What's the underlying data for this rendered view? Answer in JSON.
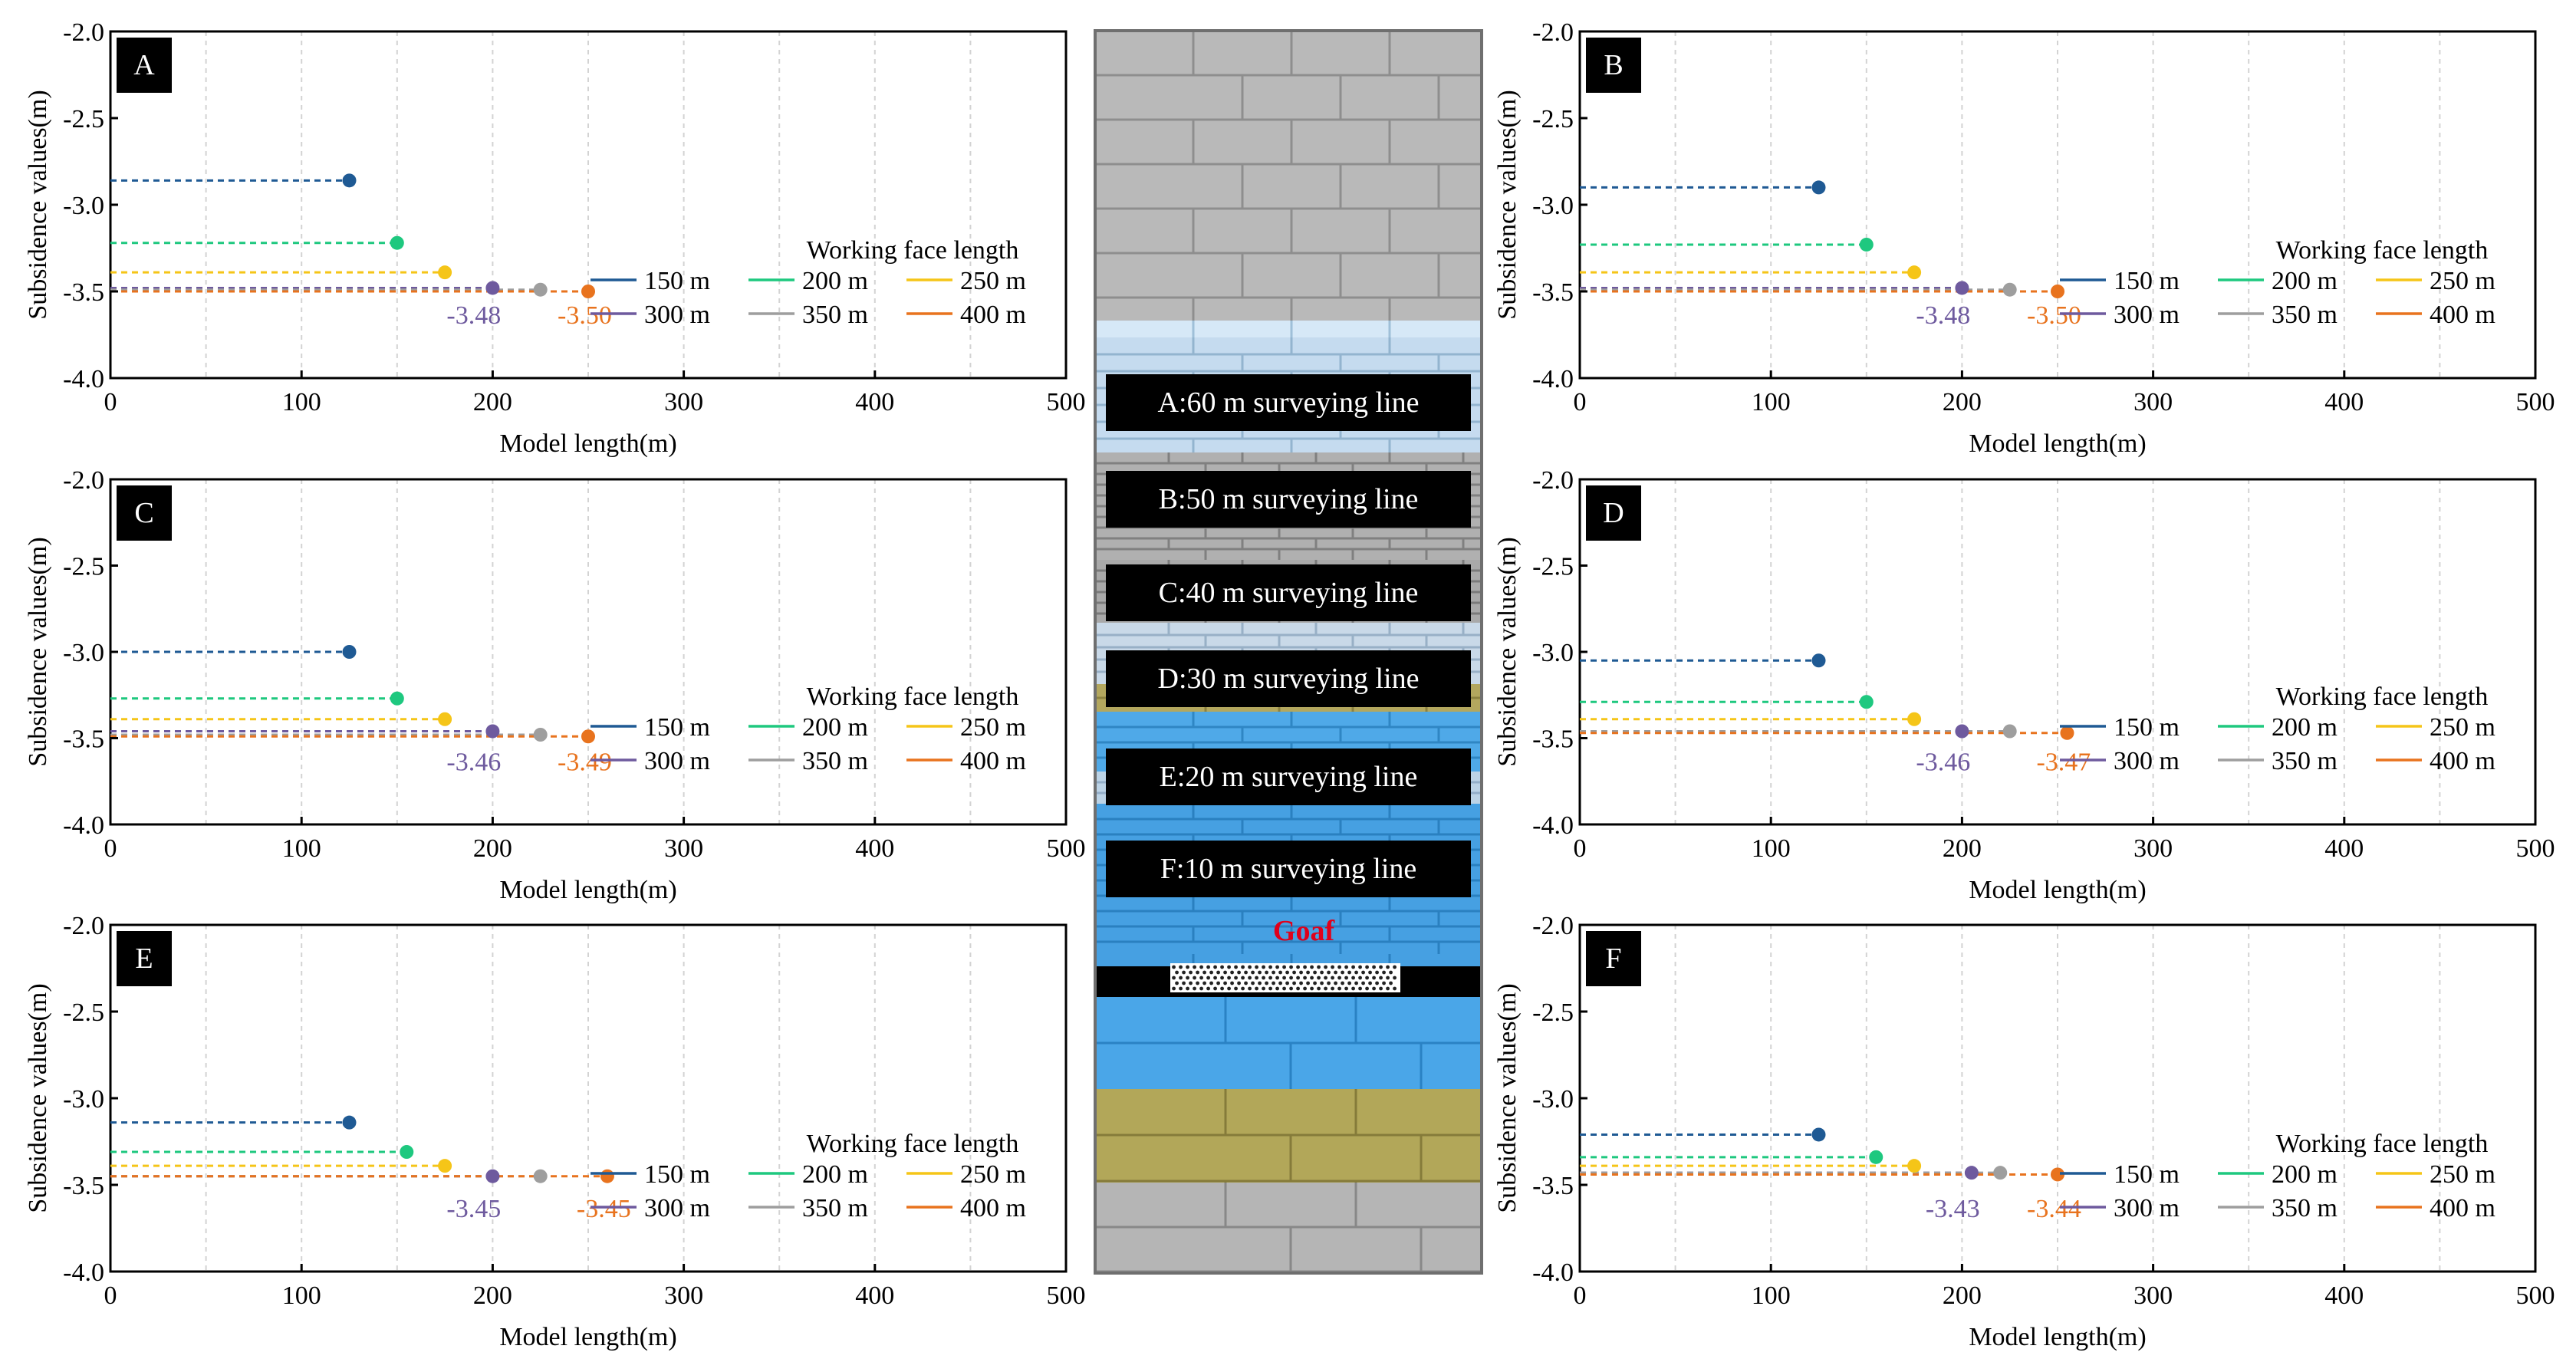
{
  "figure": {
    "goaf_label": "Goaf",
    "surveying_lines": [
      "A:60 m surveying line",
      "B:50 m surveying line",
      "C:40 m surveying line",
      "D:30 m surveying line",
      "E:20 m surveying line",
      "F:10 m surveying line"
    ]
  },
  "chart_data": [
    {
      "type": "line",
      "panel_label": "A",
      "xlabel": "Model length(m)",
      "ylabel": "Subsidence values(m)",
      "xlim": [
        0,
        500
      ],
      "ylim": [
        -4.0,
        -2.0
      ],
      "x_ticks": [
        "0",
        "100",
        "200",
        "300",
        "400",
        "500"
      ],
      "y_ticks": [
        "-2.0",
        "-2.5",
        "-3.0",
        "-3.5",
        "-4.0"
      ],
      "legend_title": "Working face length",
      "series": [
        {
          "name": "150 m",
          "color": "#1f5a94",
          "min_x": 125,
          "min_y": -2.86
        },
        {
          "name": "200 m",
          "color": "#1ec87f",
          "min_x": 150,
          "min_y": -3.22
        },
        {
          "name": "250 m",
          "color": "#f5c518",
          "min_x": 175,
          "min_y": -3.39
        },
        {
          "name": "300 m",
          "color": "#6e5a9e",
          "min_x": 200,
          "min_y": -3.48
        },
        {
          "name": "350 m",
          "color": "#9e9e9e",
          "min_x": 225,
          "min_y": -3.49
        },
        {
          "name": "400 m",
          "color": "#e8731e",
          "min_x": 250,
          "min_y": -3.5
        }
      ],
      "annotations": [
        {
          "text": "-3.48",
          "color": "#6e5a9e"
        },
        {
          "text": "-3.50",
          "color": "#e8731e"
        }
      ]
    },
    {
      "type": "line",
      "panel_label": "B",
      "xlabel": "Model length(m)",
      "ylabel": "Subsidence values(m)",
      "xlim": [
        0,
        500
      ],
      "ylim": [
        -4.0,
        -2.0
      ],
      "x_ticks": [
        "0",
        "100",
        "200",
        "300",
        "400",
        "500"
      ],
      "y_ticks": [
        "-2.0",
        "-2.5",
        "-3.0",
        "-3.5",
        "-4.0"
      ],
      "legend_title": "Working face length",
      "series": [
        {
          "name": "150 m",
          "color": "#1f5a94",
          "min_x": 125,
          "min_y": -2.9
        },
        {
          "name": "200 m",
          "color": "#1ec87f",
          "min_x": 150,
          "min_y": -3.23
        },
        {
          "name": "250 m",
          "color": "#f5c518",
          "min_x": 175,
          "min_y": -3.39
        },
        {
          "name": "300 m",
          "color": "#6e5a9e",
          "min_x": 200,
          "min_y": -3.48
        },
        {
          "name": "350 m",
          "color": "#9e9e9e",
          "min_x": 225,
          "min_y": -3.49
        },
        {
          "name": "400 m",
          "color": "#e8731e",
          "min_x": 250,
          "min_y": -3.5
        }
      ],
      "annotations": [
        {
          "text": "-3.48",
          "color": "#6e5a9e"
        },
        {
          "text": "-3.50",
          "color": "#e8731e"
        }
      ]
    },
    {
      "type": "line",
      "panel_label": "C",
      "xlabel": "Model length(m)",
      "ylabel": "Subsidence values(m)",
      "xlim": [
        0,
        500
      ],
      "ylim": [
        -4.0,
        -2.0
      ],
      "x_ticks": [
        "0",
        "100",
        "200",
        "300",
        "400",
        "500"
      ],
      "y_ticks": [
        "-2.0",
        "-2.5",
        "-3.0",
        "-3.5",
        "-4.0"
      ],
      "legend_title": "Working face length",
      "series": [
        {
          "name": "150 m",
          "color": "#1f5a94",
          "min_x": 125,
          "min_y": -3.0
        },
        {
          "name": "200 m",
          "color": "#1ec87f",
          "min_x": 150,
          "min_y": -3.27
        },
        {
          "name": "250 m",
          "color": "#f5c518",
          "min_x": 175,
          "min_y": -3.39
        },
        {
          "name": "300 m",
          "color": "#6e5a9e",
          "min_x": 200,
          "min_y": -3.46
        },
        {
          "name": "350 m",
          "color": "#9e9e9e",
          "min_x": 225,
          "min_y": -3.48
        },
        {
          "name": "400 m",
          "color": "#e8731e",
          "min_x": 250,
          "min_y": -3.49
        }
      ],
      "annotations": [
        {
          "text": "-3.46",
          "color": "#6e5a9e"
        },
        {
          "text": "-3.49",
          "color": "#e8731e"
        }
      ]
    },
    {
      "type": "line",
      "panel_label": "D",
      "xlabel": "Model length(m)",
      "ylabel": "Subsidence values(m)",
      "xlim": [
        0,
        500
      ],
      "ylim": [
        -4.0,
        -2.0
      ],
      "x_ticks": [
        "0",
        "100",
        "200",
        "300",
        "400",
        "500"
      ],
      "y_ticks": [
        "-2.0",
        "-2.5",
        "-3.0",
        "-3.5",
        "-4.0"
      ],
      "legend_title": "Working face length",
      "series": [
        {
          "name": "150 m",
          "color": "#1f5a94",
          "min_x": 125,
          "min_y": -3.05
        },
        {
          "name": "200 m",
          "color": "#1ec87f",
          "min_x": 150,
          "min_y": -3.29
        },
        {
          "name": "250 m",
          "color": "#f5c518",
          "min_x": 175,
          "min_y": -3.39
        },
        {
          "name": "300 m",
          "color": "#6e5a9e",
          "min_x": 200,
          "min_y": -3.46
        },
        {
          "name": "350 m",
          "color": "#9e9e9e",
          "min_x": 225,
          "min_y": -3.46
        },
        {
          "name": "400 m",
          "color": "#e8731e",
          "min_x": 255,
          "min_y": -3.47
        }
      ],
      "annotations": [
        {
          "text": "-3.46",
          "color": "#6e5a9e"
        },
        {
          "text": "-3.47",
          "color": "#e8731e"
        }
      ]
    },
    {
      "type": "line",
      "panel_label": "E",
      "xlabel": "Model length(m)",
      "ylabel": "Subsidence values(m)",
      "xlim": [
        0,
        500
      ],
      "ylim": [
        -4.0,
        -2.0
      ],
      "x_ticks": [
        "0",
        "100",
        "200",
        "300",
        "400",
        "500"
      ],
      "y_ticks": [
        "-2.0",
        "-2.5",
        "-3.0",
        "-3.5",
        "-4.0"
      ],
      "legend_title": "Working face length",
      "series": [
        {
          "name": "150 m",
          "color": "#1f5a94",
          "min_x": 125,
          "min_y": -3.14
        },
        {
          "name": "200 m",
          "color": "#1ec87f",
          "min_x": 155,
          "min_y": -3.31
        },
        {
          "name": "250 m",
          "color": "#f5c518",
          "min_x": 175,
          "min_y": -3.39
        },
        {
          "name": "300 m",
          "color": "#6e5a9e",
          "min_x": 200,
          "min_y": -3.45
        },
        {
          "name": "350 m",
          "color": "#9e9e9e",
          "min_x": 225,
          "min_y": -3.45
        },
        {
          "name": "400 m",
          "color": "#e8731e",
          "min_x": 260,
          "min_y": -3.45
        }
      ],
      "annotations": [
        {
          "text": "-3.45",
          "color": "#6e5a9e"
        },
        {
          "text": "-3.45",
          "color": "#e8731e"
        }
      ]
    },
    {
      "type": "line",
      "panel_label": "F",
      "xlabel": "Model length(m)",
      "ylabel": "Subsidence values(m)",
      "xlim": [
        0,
        500
      ],
      "ylim": [
        -4.0,
        -2.0
      ],
      "x_ticks": [
        "0",
        "100",
        "200",
        "300",
        "400",
        "500"
      ],
      "y_ticks": [
        "-2.0",
        "-2.5",
        "-3.0",
        "-3.5",
        "-4.0"
      ],
      "legend_title": "Working face length",
      "series": [
        {
          "name": "150 m",
          "color": "#1f5a94",
          "min_x": 125,
          "min_y": -3.21
        },
        {
          "name": "200 m",
          "color": "#1ec87f",
          "min_x": 155,
          "min_y": -3.34
        },
        {
          "name": "250 m",
          "color": "#f5c518",
          "min_x": 175,
          "min_y": -3.39
        },
        {
          "name": "300 m",
          "color": "#6e5a9e",
          "min_x": 205,
          "min_y": -3.43
        },
        {
          "name": "350 m",
          "color": "#9e9e9e",
          "min_x": 220,
          "min_y": -3.43
        },
        {
          "name": "400 m",
          "color": "#e8731e",
          "min_x": 250,
          "min_y": -3.44
        }
      ],
      "annotations": [
        {
          "text": "-3.43",
          "color": "#6e5a9e"
        },
        {
          "text": "-3.44",
          "color": "#e8731e"
        }
      ]
    }
  ]
}
